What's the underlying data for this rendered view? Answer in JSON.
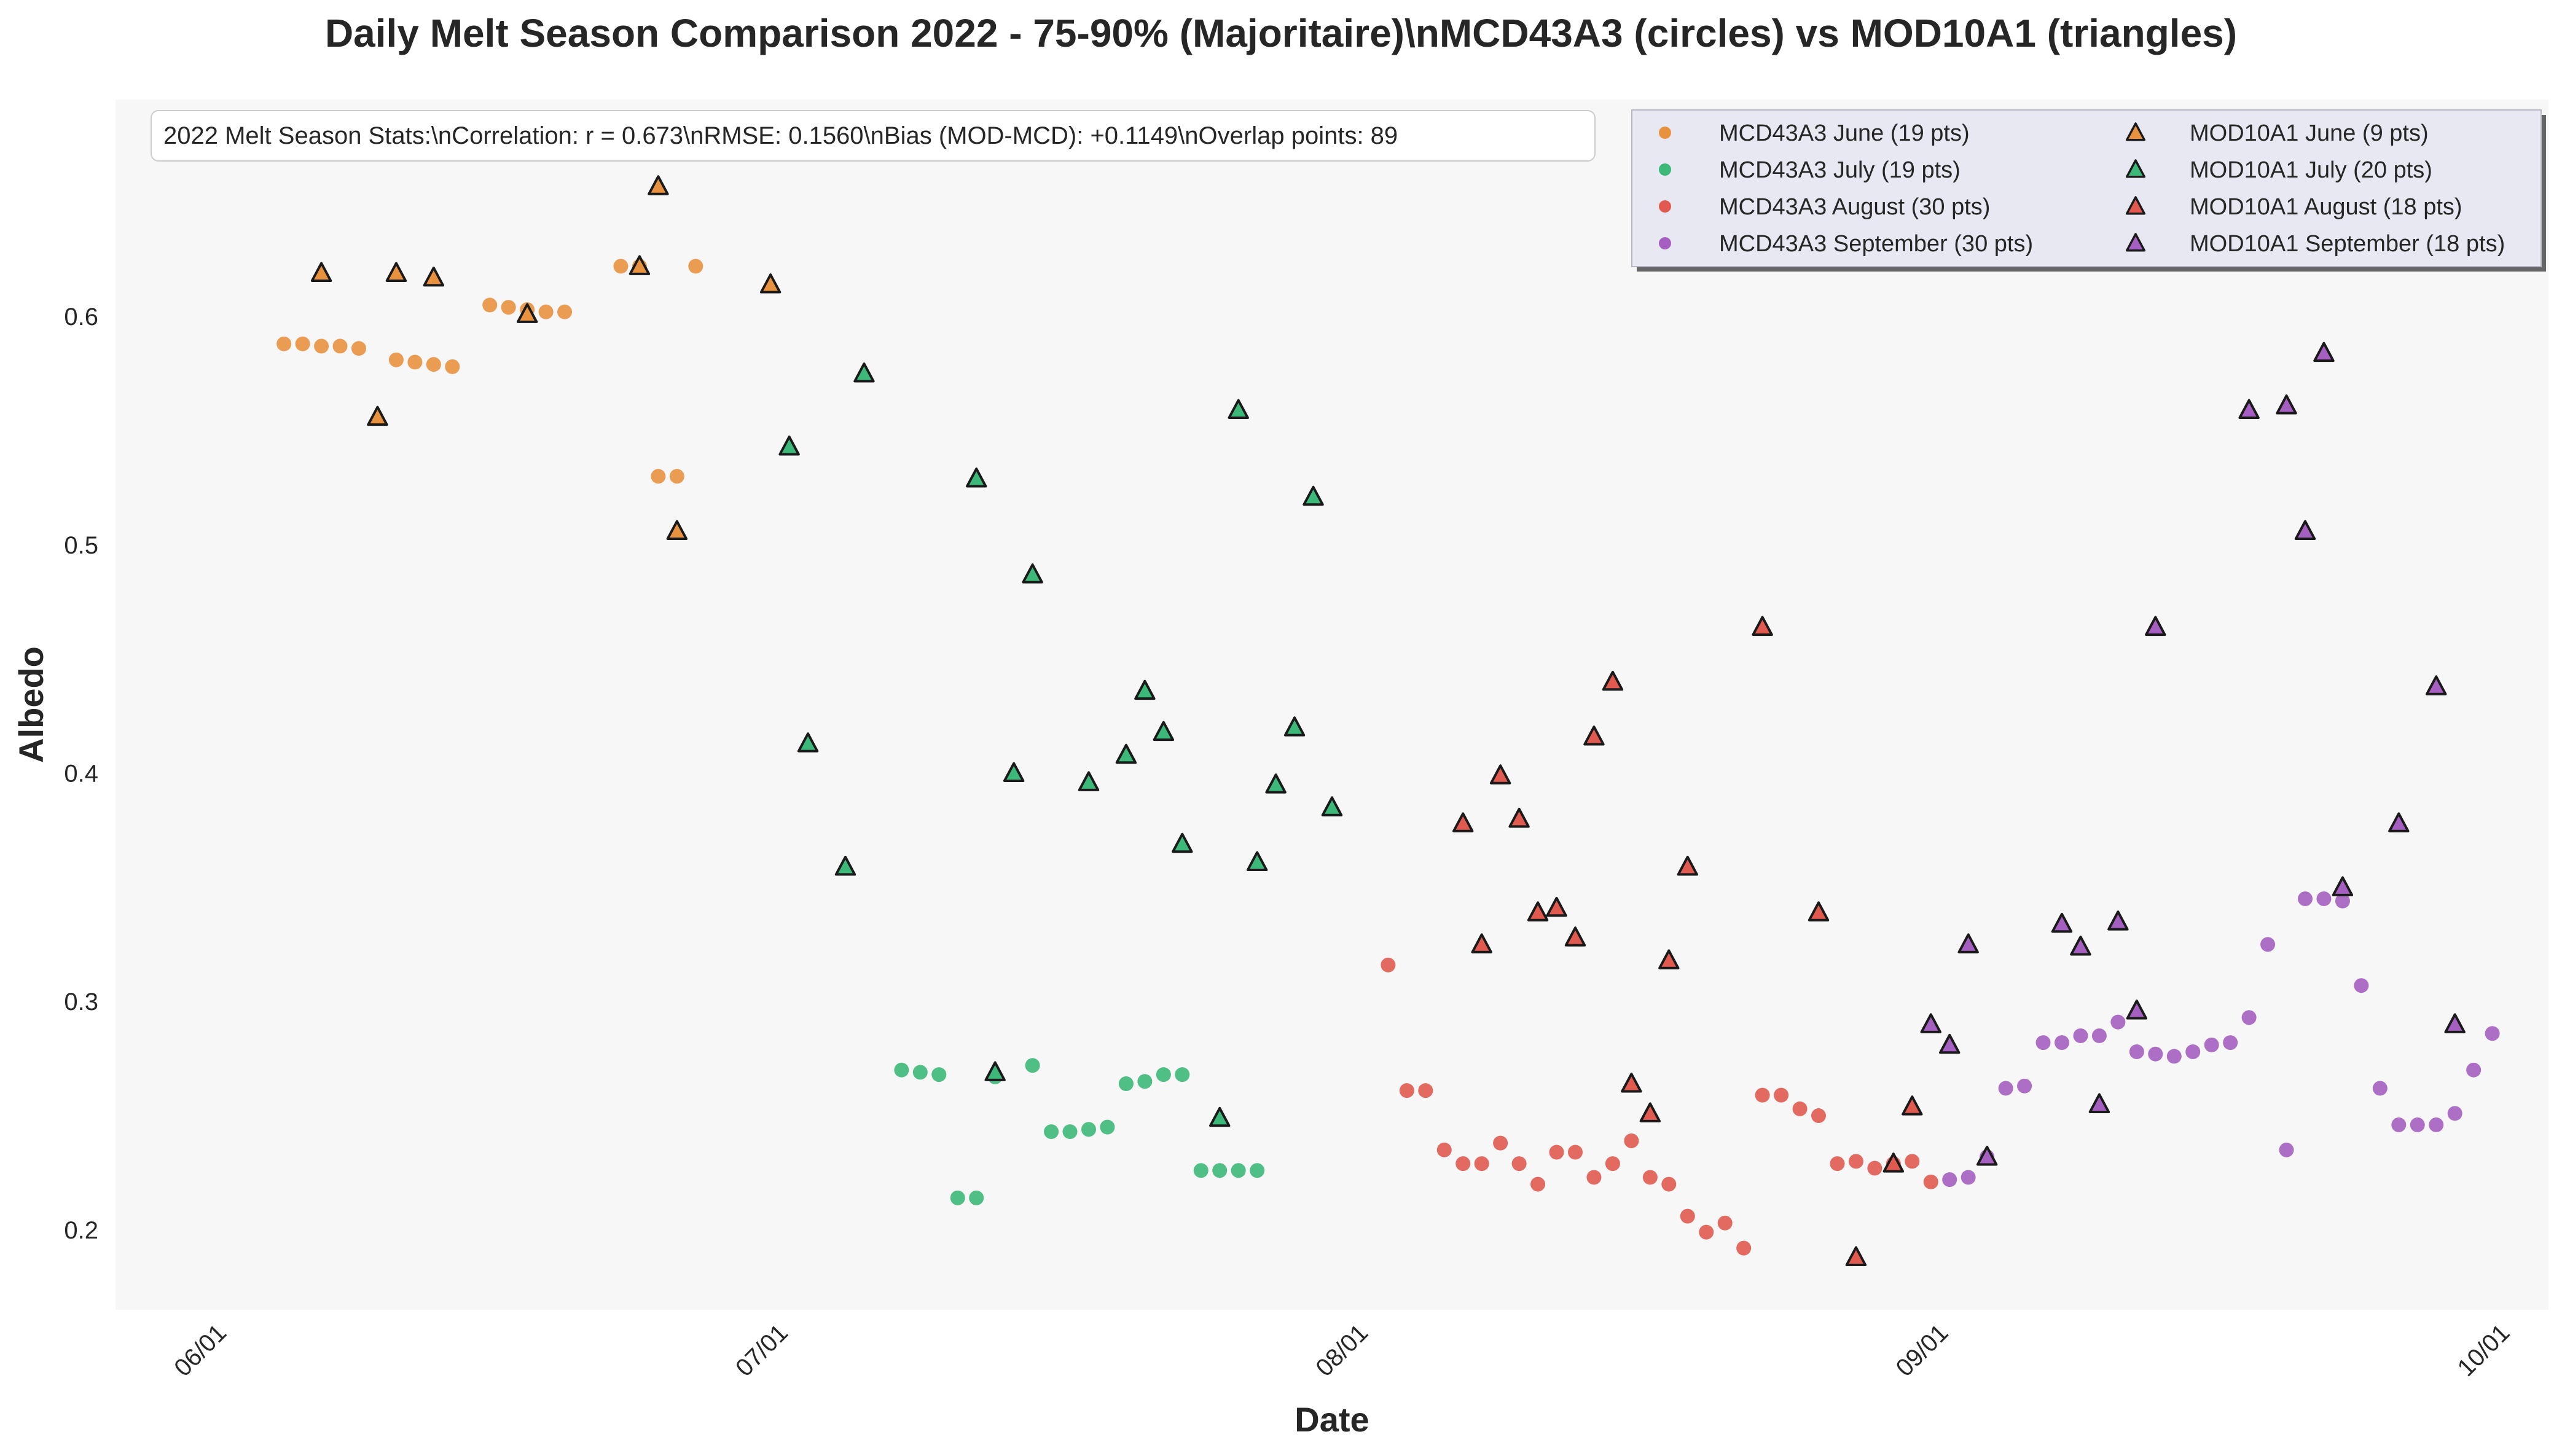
{
  "chart_data": {
    "type": "scatter",
    "title": "Daily Melt Season Comparison 2022 - 75-90% (Majoritaire)\\nMCD43A3 (circles) vs MOD10A1 (triangles)",
    "xlabel": "Date",
    "ylabel": "Albedo",
    "x_range": [
      "2022-05-26",
      "2022-10-03"
    ],
    "ylim": [
      0.165,
      0.695
    ],
    "x_ticks": [
      {
        "date": "2022-06-01",
        "label": "06/01"
      },
      {
        "date": "2022-07-01",
        "label": "07/01"
      },
      {
        "date": "2022-08-01",
        "label": "08/01"
      },
      {
        "date": "2022-09-01",
        "label": "09/01"
      },
      {
        "date": "2022-10-01",
        "label": "10/01"
      }
    ],
    "y_ticks": [
      0.2,
      0.3,
      0.4,
      0.5,
      0.6
    ],
    "grid": false,
    "legend_position": "top-right",
    "stats_box": "2022 Melt Season Stats:\\nCorrelation: r = 0.673\\nRMSE: 0.1560\\nBias (MOD-MCD): +0.1149\\nOverlap points: 89",
    "series": [
      {
        "name": "MCD43A3 June (19 pts)",
        "marker": "circle",
        "color": "#e8913f",
        "x": [
          "2022-06-04",
          "2022-06-05",
          "2022-06-06",
          "2022-06-07",
          "2022-06-08",
          "2022-06-10",
          "2022-06-11",
          "2022-06-12",
          "2022-06-13",
          "2022-06-15",
          "2022-06-16",
          "2022-06-17",
          "2022-06-18",
          "2022-06-19",
          "2022-06-22",
          "2022-06-23",
          "2022-06-24",
          "2022-06-25",
          "2022-06-26"
        ],
        "y": [
          0.588,
          0.588,
          0.587,
          0.587,
          0.586,
          0.581,
          0.58,
          0.579,
          0.578,
          0.605,
          0.604,
          0.603,
          0.602,
          0.602,
          0.622,
          0.622,
          0.53,
          0.53,
          0.622
        ]
      },
      {
        "name": "MCD43A3 July (19 pts)",
        "marker": "circle",
        "color": "#3cb878",
        "x": [
          "2022-07-07",
          "2022-07-08",
          "2022-07-09",
          "2022-07-10",
          "2022-07-11",
          "2022-07-12",
          "2022-07-14",
          "2022-07-15",
          "2022-07-16",
          "2022-07-17",
          "2022-07-18",
          "2022-07-19",
          "2022-07-20",
          "2022-07-21",
          "2022-07-22",
          "2022-07-23",
          "2022-07-24",
          "2022-07-25",
          "2022-07-26"
        ],
        "y": [
          0.27,
          0.269,
          0.268,
          0.214,
          0.214,
          0.267,
          0.272,
          0.243,
          0.243,
          0.244,
          0.245,
          0.264,
          0.265,
          0.268,
          0.268,
          0.226,
          0.226,
          0.226,
          0.226
        ]
      },
      {
        "name": "MCD43A3 August (30 pts)",
        "marker": "circle",
        "color": "#e05a4f",
        "x": [
          "2022-08-02",
          "2022-08-03",
          "2022-08-04",
          "2022-08-05",
          "2022-08-06",
          "2022-08-07",
          "2022-08-08",
          "2022-08-09",
          "2022-08-10",
          "2022-08-11",
          "2022-08-12",
          "2022-08-13",
          "2022-08-14",
          "2022-08-15",
          "2022-08-16",
          "2022-08-17",
          "2022-08-18",
          "2022-08-19",
          "2022-08-20",
          "2022-08-21",
          "2022-08-22",
          "2022-08-23",
          "2022-08-24",
          "2022-08-25",
          "2022-08-26",
          "2022-08-27",
          "2022-08-28",
          "2022-08-29",
          "2022-08-30",
          "2022-08-31"
        ],
        "y": [
          0.316,
          0.261,
          0.261,
          0.235,
          0.229,
          0.229,
          0.238,
          0.229,
          0.22,
          0.234,
          0.234,
          0.223,
          0.229,
          0.239,
          0.223,
          0.22,
          0.206,
          0.199,
          0.203,
          0.192,
          0.259,
          0.259,
          0.253,
          0.25,
          0.229,
          0.23,
          0.227,
          0.229,
          0.23,
          0.221
        ]
      },
      {
        "name": "MCD43A3 September (30 pts)",
        "marker": "circle",
        "color": "#a45fc0",
        "x": [
          "2022-09-01",
          "2022-09-02",
          "2022-09-03",
          "2022-09-04",
          "2022-09-05",
          "2022-09-06",
          "2022-09-07",
          "2022-09-08",
          "2022-09-09",
          "2022-09-10",
          "2022-09-11",
          "2022-09-12",
          "2022-09-13",
          "2022-09-14",
          "2022-09-15",
          "2022-09-16",
          "2022-09-17",
          "2022-09-18",
          "2022-09-19",
          "2022-09-20",
          "2022-09-21",
          "2022-09-22",
          "2022-09-23",
          "2022-09-24",
          "2022-09-25",
          "2022-09-26",
          "2022-09-27",
          "2022-09-28",
          "2022-09-29",
          "2022-09-30"
        ],
        "y": [
          0.222,
          0.223,
          0.232,
          0.262,
          0.263,
          0.282,
          0.282,
          0.285,
          0.285,
          0.291,
          0.278,
          0.277,
          0.276,
          0.278,
          0.281,
          0.282,
          0.293,
          0.325,
          0.235,
          0.345,
          0.345,
          0.344,
          0.307,
          0.262,
          0.246,
          0.246,
          0.246,
          0.251,
          0.27,
          0.286
        ]
      },
      {
        "name": "MOD10A1 June (9 pts)",
        "marker": "triangle",
        "color": "#e8913f",
        "x": [
          "2022-06-06",
          "2022-06-09",
          "2022-06-10",
          "2022-06-12",
          "2022-06-17",
          "2022-06-23",
          "2022-06-24",
          "2022-06-25",
          "2022-06-30"
        ],
        "y": [
          0.619,
          0.556,
          0.619,
          0.617,
          0.601,
          0.622,
          0.657,
          0.506,
          0.614
        ]
      },
      {
        "name": "MOD10A1 July (20 pts)",
        "marker": "triangle",
        "color": "#3cb878",
        "x": [
          "2022-07-01",
          "2022-07-02",
          "2022-07-04",
          "2022-07-05",
          "2022-07-11",
          "2022-07-12",
          "2022-07-13",
          "2022-07-14",
          "2022-07-17",
          "2022-07-19",
          "2022-07-20",
          "2022-07-21",
          "2022-07-22",
          "2022-07-24",
          "2022-07-25",
          "2022-07-26",
          "2022-07-27",
          "2022-07-28",
          "2022-07-29",
          "2022-07-30"
        ],
        "y": [
          0.543,
          0.413,
          0.359,
          0.575,
          0.529,
          0.269,
          0.4,
          0.487,
          0.396,
          0.408,
          0.436,
          0.418,
          0.369,
          0.249,
          0.559,
          0.361,
          0.395,
          0.42,
          0.521,
          0.385
        ]
      },
      {
        "name": "MOD10A1 August (18 pts)",
        "marker": "triangle",
        "color": "#e05a4f",
        "x": [
          "2022-08-06",
          "2022-08-07",
          "2022-08-08",
          "2022-08-09",
          "2022-08-10",
          "2022-08-11",
          "2022-08-12",
          "2022-08-13",
          "2022-08-14",
          "2022-08-15",
          "2022-08-16",
          "2022-08-17",
          "2022-08-18",
          "2022-08-22",
          "2022-08-25",
          "2022-08-27",
          "2022-08-29",
          "2022-08-30"
        ],
        "y": [
          0.378,
          0.325,
          0.399,
          0.38,
          0.339,
          0.341,
          0.328,
          0.416,
          0.44,
          0.264,
          0.251,
          0.318,
          0.359,
          0.464,
          0.339,
          0.188,
          0.229,
          0.254
        ]
      },
      {
        "name": "MOD10A1 September (18 pts)",
        "marker": "triangle",
        "color": "#a45fc0",
        "x": [
          "2022-08-31",
          "2022-09-01",
          "2022-09-02",
          "2022-09-03",
          "2022-09-07",
          "2022-09-08",
          "2022-09-09",
          "2022-09-10",
          "2022-09-11",
          "2022-09-12",
          "2022-09-17",
          "2022-09-19",
          "2022-09-20",
          "2022-09-21",
          "2022-09-22",
          "2022-09-25",
          "2022-09-27",
          "2022-09-28"
        ],
        "y": [
          0.29,
          0.281,
          0.325,
          0.232,
          0.334,
          0.324,
          0.255,
          0.335,
          0.296,
          0.464,
          0.559,
          0.561,
          0.506,
          0.584,
          0.35,
          0.378,
          0.438,
          0.29
        ]
      }
    ]
  }
}
